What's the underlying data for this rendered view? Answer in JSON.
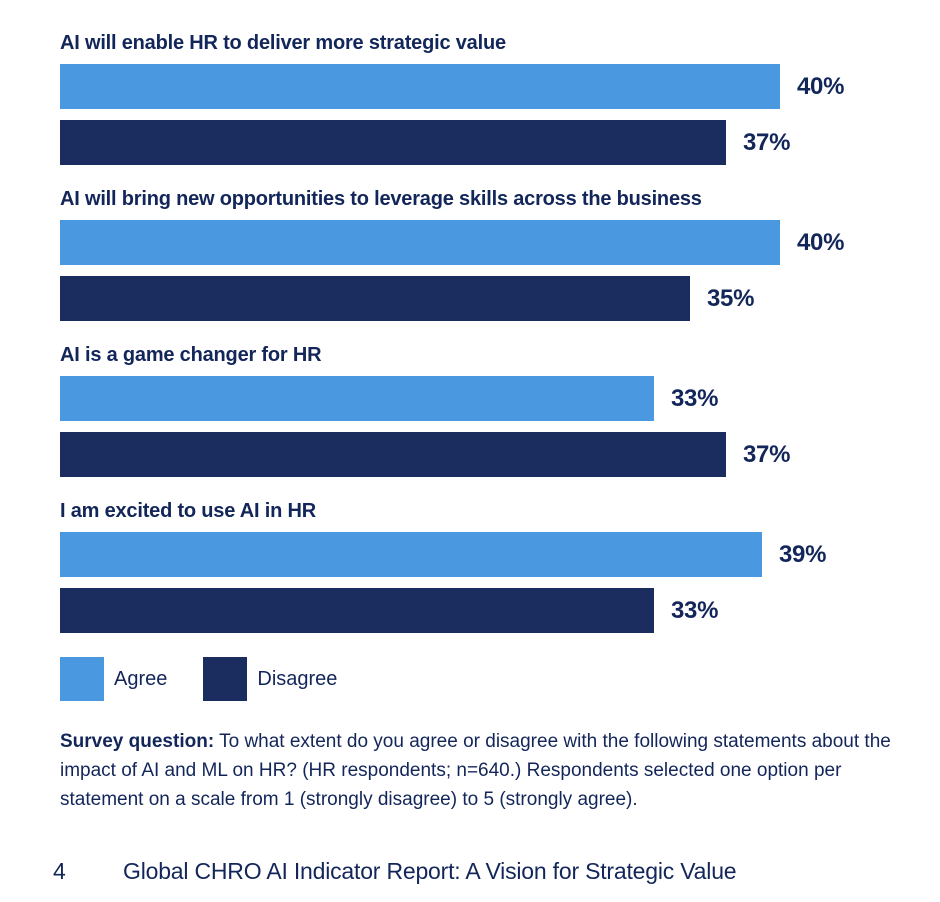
{
  "colors": {
    "agree_blue": "#4a98e0",
    "disagree_navy": "#1b2c5e",
    "text_navy": "#13265a",
    "background": "#ffffff"
  },
  "chart_data": {
    "type": "bar",
    "orientation": "horizontal",
    "unit": "%",
    "value_labels_shown": true,
    "axes_shown": false,
    "grid": false,
    "legend_position": "bottom-left",
    "categories": [
      "AI will enable HR to deliver more strategic value",
      "AI will bring new opportunities to leverage skills across the business",
      "AI is a game changer for HR",
      "I am excited to use AI in HR"
    ],
    "series": [
      {
        "name": "Agree",
        "values": [
          40,
          40,
          33,
          39
        ]
      },
      {
        "name": "Disagree",
        "values": [
          37,
          35,
          37,
          33
        ]
      }
    ]
  },
  "legend": {
    "agree_label": "Agree",
    "disagree_label": "Disagree"
  },
  "survey_note": {
    "lead": "Survey question:",
    "body": " To what extent do you agree or disagree with the following statements about the impact of AI and ML on HR? (HR respondents; n=640.) Respondents selected one option per statement on a scale from 1 (strongly disagree) to 5 (strongly agree)."
  },
  "footer": {
    "page_number": "4",
    "report_title": "Global CHRO AI Indicator Report: A Vision for Strategic Value"
  }
}
